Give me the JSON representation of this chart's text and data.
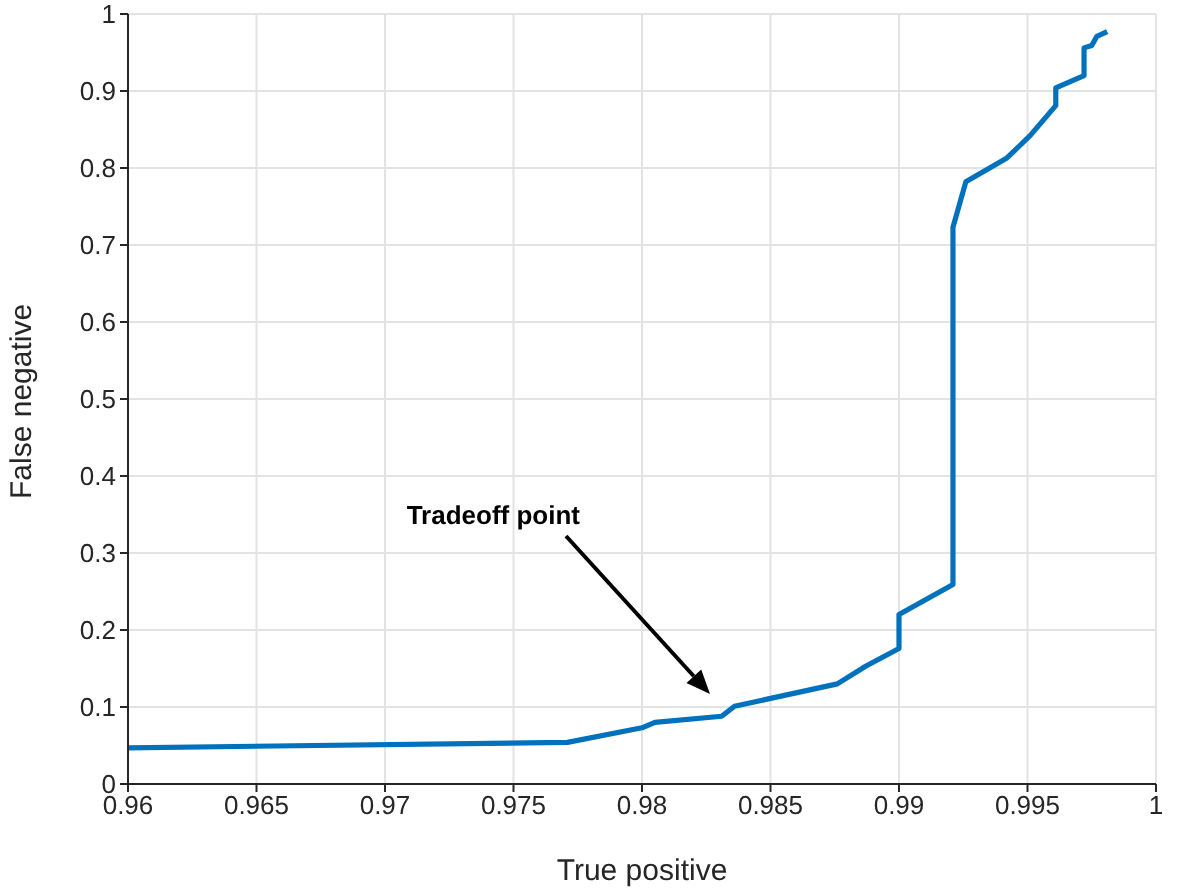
{
  "chart_data": {
    "type": "line",
    "xlabel": "True positive",
    "ylabel": "False negative",
    "x": [
      0.96,
      0.9771,
      0.98,
      0.9805,
      0.9831,
      0.9836,
      0.9876,
      0.9887,
      0.99,
      0.99,
      0.9921,
      0.9921,
      0.9921,
      0.9926,
      0.9942,
      0.9951,
      0.9961,
      0.9961,
      0.9972,
      0.9972,
      0.9975,
      0.9977,
      0.9981
    ],
    "series": [
      {
        "color": "#0072bd",
        "values": [
          0.047,
          0.054,
          0.073,
          0.08,
          0.088,
          0.101,
          0.13,
          0.153,
          0.176,
          0.22,
          0.259,
          0.264,
          0.723,
          0.782,
          0.813,
          0.842,
          0.881,
          0.904,
          0.92,
          0.956,
          0.959,
          0.971,
          0.977
        ]
      }
    ],
    "xlim": [
      0.96,
      1
    ],
    "ylim": [
      0,
      1
    ],
    "xticks": [
      0.96,
      0.965,
      0.97,
      0.975,
      0.98,
      0.985,
      0.99,
      0.995,
      1
    ],
    "yticks": [
      0,
      0.1,
      0.2,
      0.3,
      0.4,
      0.5,
      0.6,
      0.7,
      0.8,
      0.9,
      1
    ],
    "grid": true,
    "marker": "none",
    "line_style": "solid",
    "annotations": [
      "Tradeoff point"
    ]
  }
}
